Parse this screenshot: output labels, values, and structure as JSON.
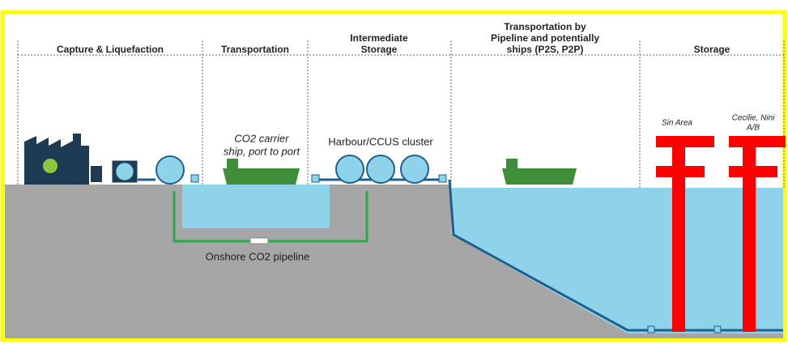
{
  "sections": [
    {
      "lines": [
        "Capture & Liquefaction"
      ]
    },
    {
      "lines": [
        "Transportation"
      ]
    },
    {
      "lines": [
        "Intermediate",
        "Storage"
      ]
    },
    {
      "lines": [
        "Transportation by",
        "Pipeline and potentially",
        "ships (P2S, P2P)"
      ]
    },
    {
      "lines": [
        "Storage"
      ]
    }
  ],
  "labels": {
    "ship": [
      "CO2 carrier",
      "ship, port to port"
    ],
    "harbour": [
      "Harbour/CCUS cluster"
    ],
    "pipeline": [
      "Onshore CO2 pipeline"
    ],
    "sin": [
      "Sin Area"
    ],
    "cecilie": [
      "Cecilie, Nini",
      "A/B"
    ]
  }
}
